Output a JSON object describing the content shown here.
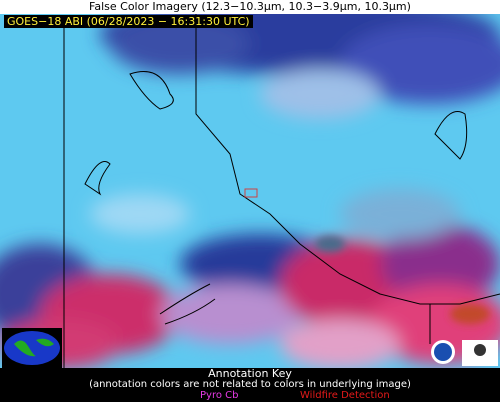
{
  "header": {
    "title": "False Color Imagery (12.3−10.3µm, 10.3−3.9µm, 10.3µm)",
    "satellite_label": "GOES−18 ABI (06/28/2023 − 16:31:30 UTC)"
  },
  "annotation_key": {
    "title": "Annotation Key",
    "note": "(annotation colors are not related to colors in underlying image)",
    "items": [
      "Pyro Cb",
      "Wildfire Detection"
    ]
  }
}
